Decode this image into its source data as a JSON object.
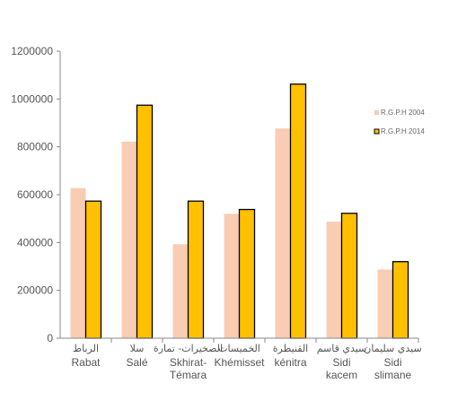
{
  "chart_data": {
    "type": "bar",
    "categories": [
      {
        "ar": "الرباط",
        "fr": [
          "Rabat"
        ]
      },
      {
        "ar": "سلا",
        "fr": [
          "Salé"
        ]
      },
      {
        "ar": "الصخيرات- تمارة",
        "fr": [
          "Skhirat-",
          "Témara"
        ]
      },
      {
        "ar": "الخميسات",
        "fr": [
          "Khémisset"
        ]
      },
      {
        "ar": "القنيطرة",
        "fr": [
          "kénitra"
        ]
      },
      {
        "ar": "سيدي قاسم",
        "fr": [
          "Sidi",
          "kacem"
        ]
      },
      {
        "ar": "سيدي سليمان",
        "fr": [
          "Sidi",
          "slimane"
        ]
      }
    ],
    "series": [
      {
        "name": "R.G.P.H 2004",
        "color": "#F8CDB4",
        "values": [
          627000,
          822000,
          393000,
          520000,
          877000,
          487000,
          287000
        ]
      },
      {
        "name": "R.G.P.H 2014",
        "color": "#FFC000",
        "values": [
          573000,
          974000,
          573000,
          538000,
          1062000,
          522000,
          320000
        ]
      }
    ],
    "yticks": [
      0,
      200000,
      400000,
      600000,
      800000,
      1000000,
      1200000
    ],
    "ylim": [
      0,
      1200000
    ],
    "grid": false,
    "legend_position": "right"
  }
}
